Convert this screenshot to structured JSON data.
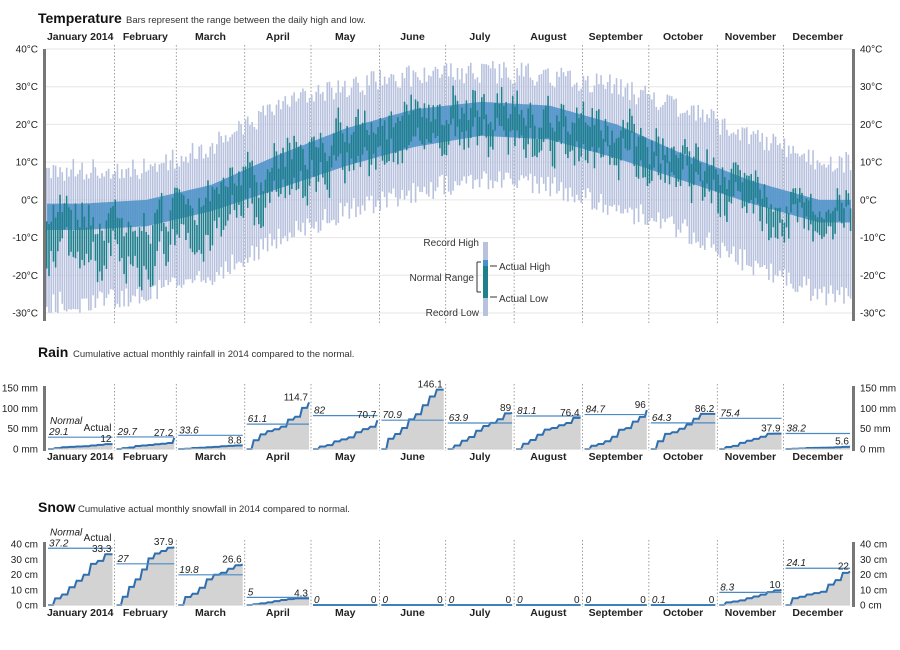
{
  "months": [
    "January 2014",
    "February",
    "March",
    "April",
    "May",
    "June",
    "July",
    "August",
    "September",
    "October",
    "November",
    "December"
  ],
  "temperature": {
    "title": "Temperature",
    "subtitle": "Bars represent the range between the daily high and low.",
    "ticks": [
      40,
      30,
      20,
      10,
      0,
      -10,
      -20,
      -30
    ],
    "tick_labels": [
      "40°C",
      "30°C",
      "20°C",
      "10°C",
      "0°C",
      "-10°C",
      "-20°C",
      "-30°C"
    ],
    "legend": {
      "record_high": "Record High",
      "normal_range": "Normal Range",
      "actual_high": "Actual High",
      "actual_low": "Actual Low",
      "record_low": "Record Low"
    }
  },
  "rain": {
    "title": "Rain",
    "subtitle": "Cumulative actual monthly rainfall in 2014 compared to the normal.",
    "tick_labels": [
      "150 mm",
      "100 mm",
      "50 mm",
      "0 mm"
    ],
    "normal_label": "Normal",
    "actual_label": "Actual",
    "normal_text": [
      "29.1",
      "29.7",
      "33.6",
      "61.1",
      "82",
      "70.9",
      "63.9",
      "81.1",
      "84.7",
      "64.3",
      "75.4",
      "38.2"
    ],
    "actual_text": [
      "12",
      "27.2",
      "8.8",
      "114.7",
      "70.7",
      "146.1",
      "89",
      "76.4",
      "96",
      "86.2",
      "37.9",
      "5.6"
    ]
  },
  "snow": {
    "title": "Snow",
    "subtitle": "Cumulative actual monthly snowfall in 2014 compared to normal.",
    "tick_labels": [
      "40 cm",
      "30 cm",
      "20 cm",
      "10 cm",
      "0 cm"
    ],
    "normal_label": "Normal",
    "actual_label": "Actual",
    "normal_text": [
      "37.2",
      "27",
      "19.8",
      "5",
      "0",
      "0",
      "0",
      "0",
      "0",
      "0.1",
      "8.3",
      "24.1"
    ],
    "actual_text": [
      "33.3",
      "37.9",
      "26.6",
      "4.3",
      "0",
      "0",
      "0",
      "0",
      "0",
      "0",
      "10",
      "22"
    ]
  },
  "colors": {
    "record_range": "#b8c2de",
    "normal_range": "#4a90c8",
    "actual_range": "#1f7f8c",
    "cumulative_line": "#2f6fb0",
    "cumulative_fill": "#d3d3d3",
    "normal_line": "#4a8ac4"
  },
  "chart_data": [
    {
      "type": "bar",
      "title": "Temperature",
      "subtitle": "Bars represent the range between the daily high and low.",
      "units": "°C",
      "ylim": [
        -30,
        40
      ],
      "x": "day of year 2014 (365 days)",
      "series": [
        {
          "name": "Record Range",
          "monthly_avg_high": [
            8,
            8,
            14,
            25,
            30,
            33,
            34,
            33,
            30,
            24,
            17,
            10
          ],
          "monthly_avg_low": [
            -27,
            -25,
            -20,
            -10,
            -3,
            2,
            6,
            4,
            -2,
            -8,
            -17,
            -25
          ]
        },
        {
          "name": "Normal Range",
          "monthly_high": [
            -1,
            0,
            4,
            12,
            19,
            24,
            26,
            25,
            20,
            12,
            5,
            0
          ],
          "monthly_low": [
            -8,
            -7,
            -3,
            3,
            9,
            14,
            17,
            16,
            11,
            5,
            -1,
            -6
          ]
        },
        {
          "name": "Actual Range",
          "monthly_avg_high": [
            -3,
            -5,
            0,
            12,
            19,
            24,
            25,
            24,
            20,
            13,
            3,
            0
          ],
          "monthly_avg_low": [
            -15,
            -18,
            -12,
            1,
            9,
            14,
            17,
            15,
            11,
            5,
            -5,
            -6
          ]
        }
      ]
    },
    {
      "type": "area",
      "title": "Rain",
      "subtitle": "Cumulative actual monthly rainfall in 2014 compared to the normal.",
      "units": "mm",
      "ylim": [
        0,
        150
      ],
      "categories": [
        "January 2014",
        "February",
        "March",
        "April",
        "May",
        "June",
        "July",
        "August",
        "September",
        "October",
        "November",
        "December"
      ],
      "series": [
        {
          "name": "Normal",
          "values": [
            29.1,
            29.7,
            33.6,
            61.1,
            82,
            70.9,
            63.9,
            81.1,
            84.7,
            64.3,
            75.4,
            38.2
          ]
        },
        {
          "name": "Actual",
          "values": [
            12,
            27.2,
            8.8,
            114.7,
            70.7,
            146.1,
            89,
            76.4,
            96,
            86.2,
            37.9,
            5.6
          ]
        }
      ]
    },
    {
      "type": "area",
      "title": "Snow",
      "subtitle": "Cumulative actual monthly snowfall in 2014 compared to normal.",
      "units": "cm",
      "ylim": [
        0,
        40
      ],
      "categories": [
        "January 2014",
        "February",
        "March",
        "April",
        "May",
        "June",
        "July",
        "August",
        "September",
        "October",
        "November",
        "December"
      ],
      "series": [
        {
          "name": "Normal",
          "values": [
            37.2,
            27,
            19.8,
            5,
            0,
            0,
            0,
            0,
            0,
            0.1,
            8.3,
            24.1
          ]
        },
        {
          "name": "Actual",
          "values": [
            33.3,
            37.9,
            26.6,
            4.3,
            0,
            0,
            0,
            0,
            0,
            0,
            10,
            22
          ]
        }
      ]
    }
  ]
}
